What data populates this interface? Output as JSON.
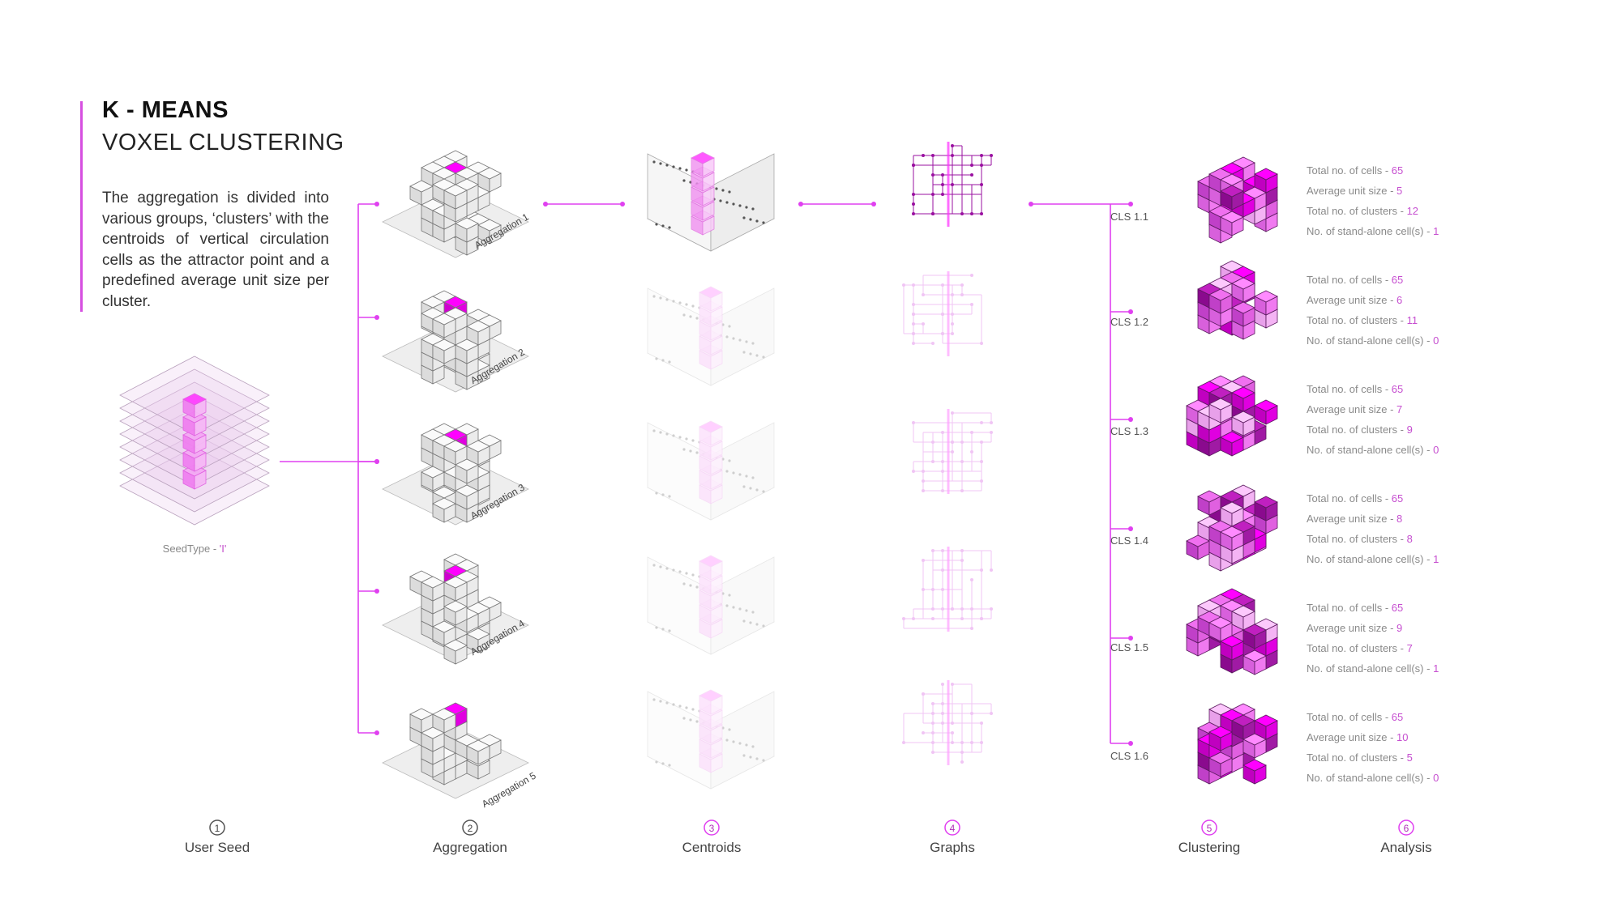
{
  "header": {
    "title_bold": "K - MEANS",
    "title_light": "VOXEL CLUSTERING",
    "description": "The aggregation is divided into various groups, ‘clusters’ with the centroids of vertical circulation cells as the attractor point and a predefined average unit size per cluster."
  },
  "seed": {
    "label_prefix": "SeedType - ",
    "label_value": "'I'"
  },
  "aggregations": [
    "Aggregation 1",
    "Aggregation 2",
    "Aggregation 3",
    "Aggregation 4",
    "Aggregation 5"
  ],
  "clusters": [
    {
      "name": "CLS 1.1",
      "stats": [
        {
          "label": "Total no. of cells - ",
          "value": "65"
        },
        {
          "label": "Average unit size - ",
          "value": "5"
        },
        {
          "label": "Total no. of clusters - ",
          "value": "12"
        },
        {
          "label": "No. of stand-alone cell(s) - ",
          "value": "1"
        }
      ]
    },
    {
      "name": "CLS 1.2",
      "stats": [
        {
          "label": "Total no. of cells - ",
          "value": "65"
        },
        {
          "label": "Average unit size - ",
          "value": "6"
        },
        {
          "label": "Total no. of clusters - ",
          "value": "11"
        },
        {
          "label": "No. of stand-alone cell(s) - ",
          "value": "0"
        }
      ]
    },
    {
      "name": "CLS 1.3",
      "stats": [
        {
          "label": "Total no. of cells - ",
          "value": "65"
        },
        {
          "label": "Average unit size - ",
          "value": "7"
        },
        {
          "label": "Total no. of clusters - ",
          "value": "9"
        },
        {
          "label": "No. of stand-alone cell(s) - ",
          "value": "0"
        }
      ]
    },
    {
      "name": "CLS 1.4",
      "stats": [
        {
          "label": "Total no. of cells - ",
          "value": "65"
        },
        {
          "label": "Average unit size - ",
          "value": "8"
        },
        {
          "label": "Total no. of clusters - ",
          "value": "8"
        },
        {
          "label": "No. of stand-alone cell(s) - ",
          "value": "1"
        }
      ]
    },
    {
      "name": "CLS 1.5",
      "stats": [
        {
          "label": "Total no. of cells - ",
          "value": "65"
        },
        {
          "label": "Average unit size - ",
          "value": "9"
        },
        {
          "label": "Total no. of clusters - ",
          "value": "7"
        },
        {
          "label": "No. of stand-alone cell(s) - ",
          "value": "1"
        }
      ]
    },
    {
      "name": "CLS 1.6",
      "stats": [
        {
          "label": "Total no. of cells - ",
          "value": "65"
        },
        {
          "label": "Average unit size - ",
          "value": "10"
        },
        {
          "label": "Total no. of clusters - ",
          "value": "5"
        },
        {
          "label": "No. of stand-alone cell(s) - ",
          "value": "0"
        }
      ]
    }
  ],
  "timeline": [
    {
      "num": "1",
      "label": "User Seed"
    },
    {
      "num": "2",
      "label": "Aggregation"
    },
    {
      "num": "3",
      "label": "Centroids"
    },
    {
      "num": "4",
      "label": "Graphs"
    },
    {
      "num": "5",
      "label": "Clustering"
    },
    {
      "num": "6",
      "label": "Analysis"
    }
  ],
  "colors": {
    "accent": "#e040f0",
    "magenta": "#ff00ff",
    "dark_magenta": "#9a0f96",
    "timeline_start": "#3a1040"
  }
}
